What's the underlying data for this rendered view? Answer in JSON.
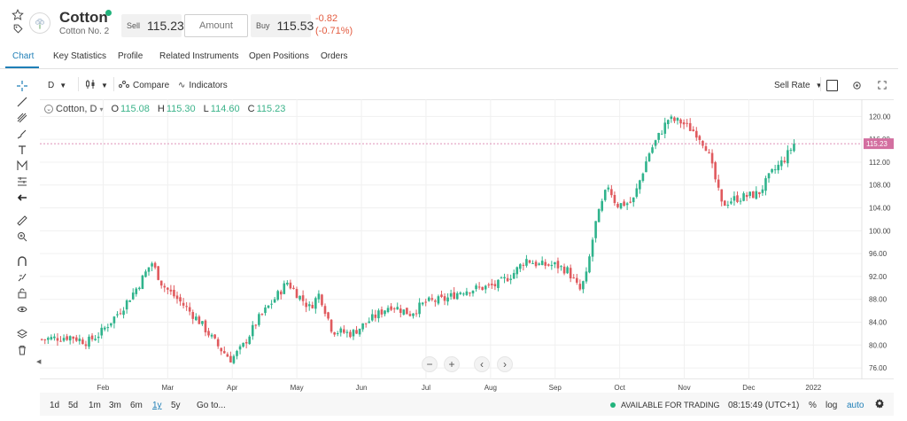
{
  "instrument": {
    "name": "Cotton",
    "subtitle": "Cotton No. 2",
    "sell_label": "Sell",
    "sell_price": "115.23",
    "amount_placeholder": "Amount",
    "buy_label": "Buy",
    "buy_price": "115.53",
    "change_abs": "-0.82",
    "change_pct": "(-0.71%)"
  },
  "tabs": [
    "Chart",
    "Key Statistics",
    "Profile",
    "Related Instruments",
    "Open Positions",
    "Orders"
  ],
  "chart_toolbar": {
    "interval": "D",
    "compare_label": "Compare",
    "indicators_label": "Indicators",
    "rate_label": "Sell Rate"
  },
  "legend": {
    "symbol": "Cotton, D",
    "o_label": "O",
    "o_value": "115.08",
    "h_label": "H",
    "h_value": "115.30",
    "l_label": "L",
    "l_value": "114.60",
    "c_label": "C",
    "c_value": "115.23"
  },
  "time_ranges": [
    "1d",
    "5d",
    "1m",
    "3m",
    "6m",
    "1y",
    "5y"
  ],
  "active_range": "1y",
  "goto_label": "Go to...",
  "status": {
    "trading": "AVAILABLE FOR TRADING",
    "clock": "08:15:49 (UTC+1)",
    "percent": "%",
    "log": "log",
    "auto": "auto"
  },
  "colors": {
    "up": "#2fb38c",
    "down": "#e05a5e",
    "accent": "#1f7fb7",
    "price_tag": "#d36fa0"
  },
  "icons": [
    "star-icon",
    "tag-icon",
    "crosshair-icon",
    "trendline-icon",
    "fib-icon",
    "brush-icon",
    "text-icon",
    "pattern-icon",
    "measure-icon",
    "back-arrow-icon",
    "ruler-icon",
    "zoom-in-icon",
    "magnet-icon",
    "lock-draw-icon",
    "lock-icon",
    "eye-icon",
    "layers-icon",
    "trash-icon",
    "settings-icon",
    "fullscreen-icon"
  ],
  "chart_data": {
    "type": "candlestick",
    "interval": "D",
    "last_price": 115.23,
    "last_price_label": "115.23",
    "ylim": [
      74,
      123
    ],
    "y_ticks": [
      "120.00",
      "116.00",
      "112.00",
      "108.00",
      "104.00",
      "100.00",
      "96.00",
      "92.00",
      "88.00",
      "84.00",
      "80.00",
      "76.00"
    ],
    "x_ticks": [
      "Feb",
      "Mar",
      "Apr",
      "May",
      "Jun",
      "Jul",
      "Aug",
      "Sep",
      "Oct",
      "Nov",
      "Dec",
      "2022"
    ],
    "x_tick_months": [
      1,
      2,
      3,
      4,
      5,
      6,
      7,
      8,
      9,
      10,
      11,
      12
    ],
    "x_range_months": [
      0.02,
      12.75
    ],
    "anchors": [
      [
        0.05,
        81.0
      ],
      [
        0.5,
        81.5
      ],
      [
        0.75,
        80.5
      ],
      [
        0.95,
        82.0
      ],
      [
        1.3,
        86.5
      ],
      [
        1.55,
        90.5
      ],
      [
        1.75,
        94.5
      ],
      [
        1.92,
        90.5
      ],
      [
        2.2,
        87.5
      ],
      [
        2.5,
        84.0
      ],
      [
        2.8,
        79.5
      ],
      [
        2.98,
        77.5
      ],
      [
        3.15,
        79.5
      ],
      [
        3.4,
        84.5
      ],
      [
        3.65,
        88.0
      ],
      [
        3.85,
        91.0
      ],
      [
        4.0,
        89.0
      ],
      [
        4.2,
        86.5
      ],
      [
        4.35,
        89.0
      ],
      [
        4.55,
        82.5
      ],
      [
        4.85,
        82.0
      ],
      [
        5.15,
        84.5
      ],
      [
        5.45,
        87.0
      ],
      [
        5.75,
        85.5
      ],
      [
        6.0,
        87.5
      ],
      [
        6.3,
        88.0
      ],
      [
        6.55,
        89.5
      ],
      [
        6.85,
        90.0
      ],
      [
        7.1,
        90.5
      ],
      [
        7.35,
        92.5
      ],
      [
        7.55,
        95.0
      ],
      [
        7.75,
        94.0
      ],
      [
        8.0,
        94.0
      ],
      [
        8.2,
        93.0
      ],
      [
        8.38,
        89.5
      ],
      [
        8.48,
        92.0
      ],
      [
        8.62,
        101.0
      ],
      [
        8.72,
        104.5
      ],
      [
        8.82,
        108.0
      ],
      [
        8.95,
        104.5
      ],
      [
        9.2,
        105.0
      ],
      [
        9.45,
        113.5
      ],
      [
        9.6,
        116.5
      ],
      [
        9.75,
        119.5
      ],
      [
        9.95,
        119.0
      ],
      [
        10.2,
        117.0
      ],
      [
        10.35,
        114.5
      ],
      [
        10.48,
        109.0
      ],
      [
        10.58,
        104.5
      ],
      [
        10.75,
        105.5
      ],
      [
        10.95,
        106.0
      ],
      [
        11.15,
        106.5
      ],
      [
        11.35,
        110.0
      ],
      [
        11.55,
        112.5
      ],
      [
        11.7,
        115.2
      ]
    ],
    "series": [
      {
        "name": "Cotton, D",
        "style": "candles"
      }
    ]
  }
}
